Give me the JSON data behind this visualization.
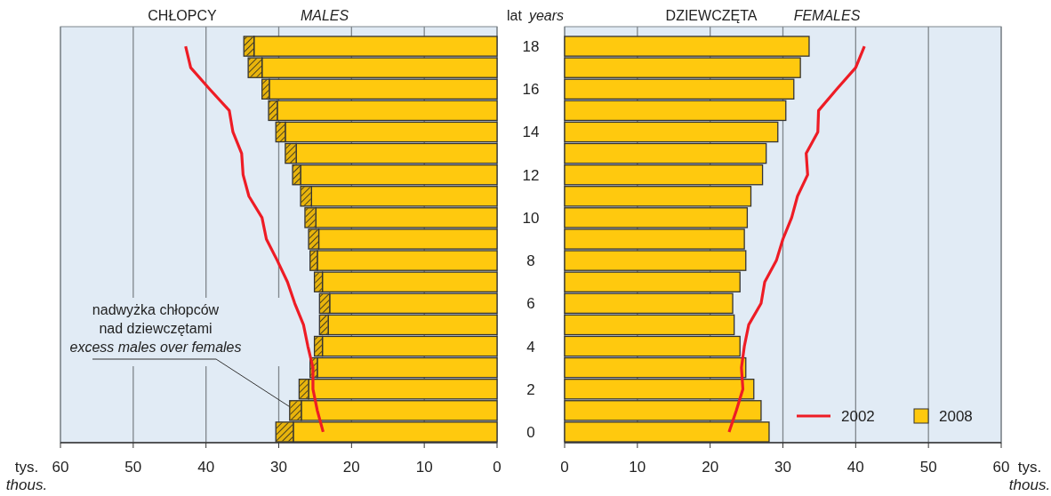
{
  "chart_data": [
    {
      "type": "bar",
      "orientation": "horizontal",
      "stacked": true,
      "title": "CHŁOPCY",
      "subtitle": "MALES",
      "xlabel": "tys.\nthous.",
      "ylabel": "lat years",
      "categories": [
        "18",
        null,
        "16",
        null,
        "14",
        null,
        "12",
        null,
        "10",
        null,
        "8",
        null,
        "6",
        null,
        "4",
        null,
        "2",
        null,
        "0"
      ],
      "series": [
        {
          "color": "#ffc90e",
          "values": [
            33.4,
            32.3,
            31.3,
            30.2,
            29.1,
            27.6,
            27.0,
            25.5,
            24.9,
            24.5,
            24.7,
            24.0,
            23.0,
            23.2,
            24.0,
            24.7,
            25.9,
            26.9,
            28.0
          ]
        },
        {
          "color": "#e8b40c",
          "values": [
            1.4,
            1.9,
            1.0,
            1.2,
            1.3,
            1.5,
            1.1,
            1.5,
            1.5,
            1.4,
            1.0,
            1.1,
            1.4,
            1.2,
            1.1,
            1.0,
            1.3,
            1.6,
            2.4
          ]
        },
        {
          "type": "line",
          "color": "#ee1c25",
          "values": [
            42.8,
            42.1,
            39.5,
            36.8,
            36.3,
            35.1,
            34.9,
            34.1,
            32.3,
            31.7,
            30.2,
            28.8,
            27.8,
            26.6,
            26.0,
            25.3,
            25.3,
            24.7,
            23.9
          ]
        }
      ],
      "xlim": [
        60,
        0
      ],
      "xticks": [
        60,
        50,
        40,
        30,
        20,
        10,
        0
      ],
      "grid": "x",
      "annotations": [
        "nadwyżka chłopców\nnad dziewczętami\nexcess males over females"
      ]
    },
    {
      "type": "bar",
      "orientation": "horizontal",
      "title": "DZIEWCZĘTA",
      "subtitle": "FEMALES",
      "xlabel": "tys.\nthous.",
      "categories": [
        null,
        null,
        null,
        null,
        null,
        null,
        null,
        null,
        null,
        null,
        null,
        null,
        null,
        null,
        null,
        null,
        null,
        null,
        null
      ],
      "series": [
        {
          "name": "2008",
          "color": "#ffc90e",
          "values": [
            33.6,
            32.4,
            31.5,
            30.4,
            29.3,
            27.7,
            27.2,
            25.6,
            25.1,
            24.7,
            24.9,
            24.1,
            23.1,
            23.3,
            24.1,
            24.9,
            26.0,
            27.0,
            28.1
          ]
        },
        {
          "type": "line",
          "name": "2002",
          "color": "#ee1c25",
          "values": [
            41.2,
            40.0,
            37.4,
            34.9,
            34.8,
            33.2,
            33.4,
            32.0,
            31.2,
            30.0,
            29.1,
            27.5,
            27.0,
            25.3,
            24.7,
            24.3,
            24.5,
            23.6,
            22.6
          ]
        }
      ],
      "xlim": [
        0,
        60
      ],
      "xticks": [
        0,
        10,
        20,
        30,
        40,
        50,
        60
      ],
      "grid": "x",
      "tick_labels": "x",
      "legend": "bottom right"
    }
  ]
}
